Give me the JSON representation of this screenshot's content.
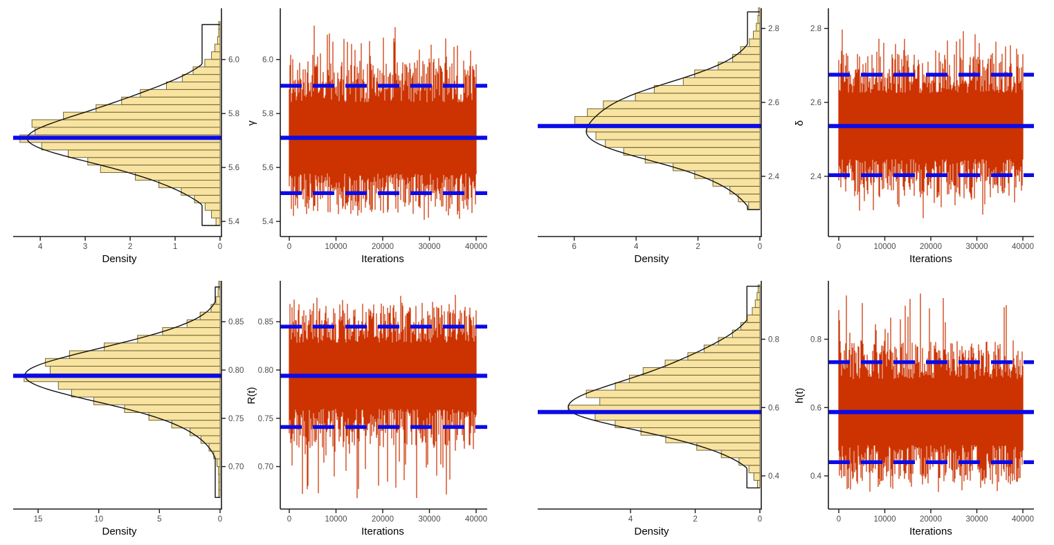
{
  "figure": {
    "title": "",
    "density_xlabel": "Density",
    "trace_xlabel": "Iterations",
    "layout": "2x2 grid; each cell pairs a rotated density histogram (density axis reversed, value axis on right) with an MCMC trace plot (value axis on left)"
  },
  "style": {
    "trace_color": "#CC3300",
    "hist_fill": "#F8E3A0",
    "hist_stroke": "#6F6539",
    "curve_color": "#111111",
    "hline_color": "#0B0BE8",
    "axis_color": "#1A1A1A",
    "tick_label_color": "#4A4A4A",
    "title_color": "#000000"
  },
  "chart_data": [
    {
      "id": "gamma",
      "parameter": "γ",
      "type": "area+line",
      "posterior_mean": 5.71,
      "credible_interval": [
        5.505,
        5.903
      ],
      "value_axis": {
        "domain": [
          5.344,
          6.185
        ],
        "ticks": [
          5.4,
          5.6,
          5.8,
          6.0
        ],
        "tick_labels": [
          "5.4",
          "5.6",
          "5.8",
          "6.0"
        ]
      },
      "density": {
        "xlabel": "Density",
        "x_max": 4.48,
        "x_ticks": [
          4,
          3,
          2,
          1,
          0
        ],
        "x_tick_labels": [
          "4",
          "3",
          "2",
          "1",
          "0"
        ],
        "peak_density": 4.25,
        "mode": 5.715,
        "sigma_below": 0.115,
        "sigma_above": 0.122,
        "range": [
          5.385,
          6.13
        ],
        "bin_width": 0.028
      },
      "trace": {
        "xlabel": "Iterations",
        "x_range": [
          0,
          40000
        ],
        "x_ticks": [
          0,
          10000,
          20000,
          30000,
          40000
        ],
        "x_tick_labels": [
          "0",
          "10000",
          "20000",
          "30000",
          "40000"
        ],
        "y_range": [
          5.402,
          6.135
        ]
      }
    },
    {
      "id": "delta",
      "parameter": "δ",
      "type": "area+line",
      "posterior_mean": 2.536,
      "credible_interval": [
        2.403,
        2.675
      ],
      "value_axis": {
        "domain": [
          2.237,
          2.851
        ],
        "ticks": [
          2.4,
          2.6,
          2.8
        ],
        "tick_labels": [
          "2.4",
          "2.6",
          "2.8"
        ]
      },
      "density": {
        "xlabel": "Density",
        "x_max": 7.0,
        "x_ticks": [
          6,
          4,
          2,
          0
        ],
        "x_tick_labels": [
          "6",
          "4",
          "2",
          "0"
        ],
        "peak_density": 5.9,
        "mode": 2.535,
        "sigma_below": 0.092,
        "sigma_above": 0.096,
        "range": [
          2.31,
          2.845
        ],
        "bin_width": 0.021
      },
      "trace": {
        "xlabel": "Iterations",
        "x_range": [
          0,
          40000
        ],
        "x_ticks": [
          0,
          10000,
          20000,
          30000,
          40000
        ],
        "x_tick_labels": [
          "0",
          "10000",
          "20000",
          "30000",
          "40000"
        ],
        "y_range": [
          2.283,
          2.826
        ]
      }
    },
    {
      "id": "rt",
      "parameter": "R(t)",
      "type": "area+line",
      "posterior_mean": 0.794,
      "credible_interval": [
        0.741,
        0.845
      ],
      "value_axis": {
        "domain": [
          0.656,
          0.891
        ],
        "ticks": [
          0.7,
          0.75,
          0.8,
          0.85
        ],
        "tick_labels": [
          "0.70",
          "0.75",
          "0.80",
          "0.85"
        ]
      },
      "density": {
        "xlabel": "Density",
        "x_max": 16.6,
        "x_ticks": [
          15,
          10,
          5,
          0
        ],
        "x_tick_labels": [
          "15",
          "10",
          "5",
          "0"
        ],
        "peak_density": 15.3,
        "mode": 0.798,
        "sigma_below": 0.033,
        "sigma_above": 0.027,
        "range": [
          0.668,
          0.886
        ],
        "bin_width": 0.008
      },
      "trace": {
        "xlabel": "Iterations",
        "x_range": [
          0,
          40000
        ],
        "x_ticks": [
          0,
          10000,
          20000,
          30000,
          40000
        ],
        "x_tick_labels": [
          "0",
          "10000",
          "20000",
          "30000",
          "40000"
        ],
        "y_range": [
          0.664,
          0.878
        ]
      }
    },
    {
      "id": "ht",
      "parameter": "h(t)",
      "type": "area+line",
      "posterior_mean": 0.587,
      "credible_interval": [
        0.44,
        0.733
      ],
      "value_axis": {
        "domain": [
          0.303,
          0.967
        ],
        "ticks": [
          0.4,
          0.6,
          0.8
        ],
        "tick_labels": [
          "0.4",
          "0.6",
          "0.8"
        ]
      },
      "density": {
        "xlabel": "Density",
        "x_max": 6.7,
        "x_ticks": [
          4,
          2,
          0
        ],
        "x_tick_labels": [
          "4",
          "2",
          "0"
        ],
        "peak_density": 5.5,
        "mode": 0.595,
        "sigma_below": 0.075,
        "sigma_above": 0.115,
        "range": [
          0.365,
          0.955
        ],
        "bin_width": 0.022
      },
      "trace": {
        "xlabel": "Iterations",
        "x_range": [
          0,
          40000
        ],
        "x_ticks": [
          0,
          10000,
          20000,
          30000,
          40000
        ],
        "x_tick_labels": [
          "0",
          "10000",
          "20000",
          "30000",
          "40000"
        ],
        "y_range": [
          0.353,
          0.937
        ]
      }
    }
  ]
}
